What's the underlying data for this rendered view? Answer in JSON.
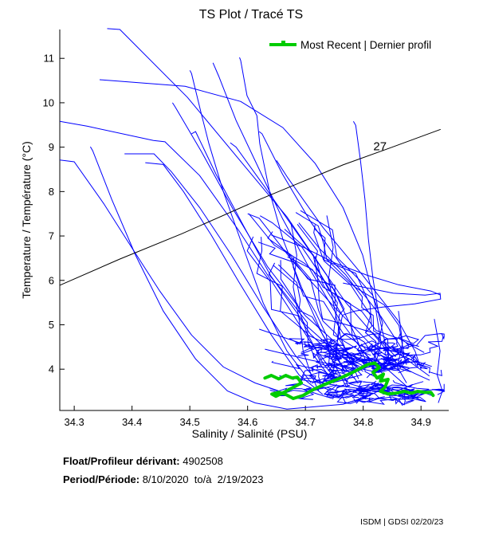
{
  "title": "TS Plot / Tracé TS",
  "legend": {
    "label": "Most Recent | Dernier profil"
  },
  "footer": {
    "float_label": "Float/Profileur dérivant:",
    "float_value": " 4902508",
    "period_label": "Period/Période:",
    "period_value": " 8/10/2020  to/à  2/19/2023",
    "credit": "ISDM | GDSI 02/20/23"
  },
  "chart_data": {
    "type": "line",
    "title": "TS Plot / Tracé TS",
    "xlabel": "Salinity / Salinité (PSU)",
    "ylabel": "Temperature / Température (°C)",
    "xlim": [
      34.275,
      34.948
    ],
    "ylim": [
      3.07,
      11.65
    ],
    "xticks": [
      34.3,
      34.4,
      34.5,
      34.6,
      34.7,
      34.8,
      34.9
    ],
    "yticks": [
      4,
      5,
      6,
      7,
      8,
      9,
      10,
      11
    ],
    "grid": false,
    "legend_position": "top-right",
    "colors": {
      "profiles": "#0000ff",
      "recent": "#00cc00",
      "contour": "#000000"
    },
    "density_contour": {
      "label": "27",
      "label_pos": [
        34.829,
        9.02
      ],
      "points": [
        [
          34.275,
          5.89
        ],
        [
          34.379,
          6.48
        ],
        [
          34.486,
          7.05
        ],
        [
          34.62,
          7.82
        ],
        [
          34.765,
          8.6
        ],
        [
          34.848,
          8.99
        ],
        [
          34.934,
          9.4
        ]
      ]
    },
    "profiles": [
      [
        [
          34.357,
          11.67
        ],
        [
          34.379,
          11.65
        ],
        [
          34.496,
          10.12
        ],
        [
          34.597,
          8.54
        ],
        [
          34.668,
          7.43
        ],
        [
          34.737,
          6.12
        ],
        [
          34.786,
          4.77
        ],
        [
          34.806,
          4.14
        ]
      ],
      [
        [
          34.344,
          10.52
        ],
        [
          34.492,
          10.37
        ],
        [
          34.588,
          10.03
        ],
        [
          34.661,
          9.44
        ],
        [
          34.717,
          8.63
        ],
        [
          34.765,
          7.64
        ],
        [
          34.799,
          6.57
        ],
        [
          34.82,
          5.49
        ],
        [
          34.831,
          4.59
        ],
        [
          34.82,
          4.05
        ]
      ],
      [
        [
          34.275,
          9.58
        ],
        [
          34.323,
          9.47
        ],
        [
          34.437,
          9.15
        ],
        [
          34.457,
          9.12
        ],
        [
          34.517,
          8.36
        ],
        [
          34.586,
          7.1
        ],
        [
          34.648,
          5.85
        ],
        [
          34.71,
          4.59
        ],
        [
          34.751,
          3.87
        ]
      ],
      [
        [
          34.5,
          10.73
        ],
        [
          34.503,
          10.66
        ],
        [
          34.519,
          9.8
        ],
        [
          34.533,
          9.08
        ],
        [
          34.558,
          8.0
        ],
        [
          34.592,
          6.75
        ],
        [
          34.627,
          5.49
        ],
        [
          34.668,
          4.41
        ],
        [
          34.71,
          3.69
        ]
      ],
      [
        [
          34.586,
          11.02
        ],
        [
          34.588,
          10.95
        ],
        [
          34.599,
          10.16
        ],
        [
          34.616,
          9.71
        ],
        [
          34.621,
          9.08
        ],
        [
          34.638,
          8.0
        ],
        [
          34.661,
          6.93
        ],
        [
          34.693,
          5.85
        ],
        [
          34.73,
          4.77
        ],
        [
          34.768,
          3.96
        ]
      ],
      [
        [
          34.783,
          9.58
        ],
        [
          34.787,
          9.49
        ],
        [
          34.795,
          8.72
        ],
        [
          34.803,
          7.82
        ],
        [
          34.809,
          6.93
        ],
        [
          34.817,
          6.03
        ],
        [
          34.827,
          5.22
        ],
        [
          34.838,
          4.59
        ],
        [
          34.848,
          4.05
        ]
      ],
      [
        [
          34.387,
          8.85
        ],
        [
          34.438,
          8.85
        ],
        [
          34.468,
          8.45
        ],
        [
          34.517,
          7.64
        ],
        [
          34.572,
          6.57
        ],
        [
          34.627,
          5.4
        ],
        [
          34.682,
          4.32
        ],
        [
          34.723,
          3.69
        ]
      ],
      [
        [
          34.423,
          8.65
        ],
        [
          34.454,
          8.61
        ],
        [
          34.489,
          8.0
        ],
        [
          34.537,
          7.02
        ],
        [
          34.586,
          5.94
        ],
        [
          34.641,
          4.77
        ],
        [
          34.689,
          3.87
        ],
        [
          34.73,
          3.43
        ]
      ],
      [
        [
          34.328,
          9.01
        ],
        [
          34.332,
          8.92
        ],
        [
          34.365,
          7.82
        ],
        [
          34.406,
          6.57
        ],
        [
          34.454,
          5.31
        ],
        [
          34.51,
          4.23
        ],
        [
          34.565,
          3.51
        ],
        [
          34.613,
          3.24
        ],
        [
          34.668,
          3.1
        ],
        [
          34.765,
          3.21
        ],
        [
          34.813,
          3.41
        ]
      ],
      [
        [
          34.275,
          8.71
        ],
        [
          34.3,
          8.67
        ],
        [
          34.351,
          7.73
        ],
        [
          34.399,
          6.75
        ],
        [
          34.448,
          5.76
        ],
        [
          34.503,
          4.77
        ],
        [
          34.558,
          4.05
        ],
        [
          34.613,
          3.69
        ],
        [
          34.654,
          3.51
        ]
      ],
      [
        [
          34.765,
          5.94
        ],
        [
          34.852,
          5.71
        ],
        [
          34.907,
          5.67
        ],
        [
          34.933,
          5.71
        ],
        [
          34.934,
          5.58
        ],
        [
          34.889,
          5.47
        ],
        [
          34.834,
          5.4
        ],
        [
          34.786,
          5.31
        ],
        [
          34.765,
          5.22
        ]
      ],
      [
        [
          34.641,
          7.02
        ],
        [
          34.696,
          6.75
        ],
        [
          34.751,
          6.39
        ],
        [
          34.806,
          6.12
        ],
        [
          34.861,
          5.9
        ],
        [
          34.917,
          5.76
        ],
        [
          34.934,
          5.67
        ]
      ],
      [
        [
          34.675,
          7.29
        ],
        [
          34.685,
          6.57
        ],
        [
          34.679,
          5.85
        ],
        [
          34.689,
          5.13
        ],
        [
          34.696,
          4.41
        ],
        [
          34.71,
          3.87
        ],
        [
          34.723,
          3.51
        ]
      ],
      [
        [
          34.737,
          7.46
        ],
        [
          34.748,
          6.75
        ],
        [
          34.74,
          6.03
        ],
        [
          34.751,
          5.31
        ],
        [
          34.762,
          4.68
        ],
        [
          34.779,
          4.14
        ],
        [
          34.792,
          3.78
        ]
      ],
      [
        [
          34.861,
          5.31
        ],
        [
          34.868,
          4.59
        ],
        [
          34.859,
          4.05
        ],
        [
          34.875,
          3.69
        ]
      ],
      [
        [
          34.923,
          5.13
        ],
        [
          34.933,
          4.41
        ],
        [
          34.928,
          3.87
        ],
        [
          34.937,
          3.51
        ],
        [
          34.93,
          3.24
        ]
      ],
      [
        [
          34.503,
          9.3
        ],
        [
          34.51,
          9.35
        ],
        [
          34.545,
          8.4
        ],
        [
          34.59,
          7.3
        ],
        [
          34.64,
          6.1
        ],
        [
          34.7,
          5.0
        ],
        [
          34.76,
          4.3
        ],
        [
          34.8,
          3.95
        ]
      ],
      [
        [
          34.47,
          10.0
        ],
        [
          34.475,
          9.9
        ],
        [
          34.52,
          8.9
        ],
        [
          34.575,
          7.6
        ],
        [
          34.635,
          6.3
        ],
        [
          34.7,
          5.2
        ],
        [
          34.765,
          4.45
        ],
        [
          34.805,
          4.1
        ]
      ],
      [
        [
          34.62,
          9.35
        ],
        [
          34.625,
          9.3
        ],
        [
          34.66,
          8.4
        ],
        [
          34.71,
          7.3
        ],
        [
          34.77,
          6.2
        ],
        [
          34.83,
          5.2
        ],
        [
          34.865,
          4.5
        ],
        [
          34.875,
          4.1
        ]
      ],
      [
        [
          34.65,
          8.7
        ],
        [
          34.67,
          8.3
        ],
        [
          34.73,
          7.2
        ],
        [
          34.8,
          6.1
        ],
        [
          34.86,
          5.1
        ],
        [
          34.89,
          4.4
        ],
        [
          34.9,
          4.0
        ]
      ],
      [
        [
          34.57,
          9.1
        ],
        [
          34.58,
          9.0
        ],
        [
          34.63,
          8.1
        ],
        [
          34.7,
          6.8
        ],
        [
          34.77,
          5.5
        ],
        [
          34.83,
          4.6
        ],
        [
          34.86,
          4.1
        ]
      ],
      [
        [
          34.6,
          7.5
        ],
        [
          34.62,
          7.4
        ],
        [
          34.68,
          6.4
        ],
        [
          34.75,
          5.4
        ],
        [
          34.81,
          4.6
        ],
        [
          34.85,
          4.2
        ]
      ],
      [
        [
          34.54,
          10.9
        ],
        [
          34.55,
          10.6
        ],
        [
          34.58,
          9.6
        ],
        [
          34.62,
          8.5
        ],
        [
          34.66,
          7.4
        ],
        [
          34.71,
          6.2
        ],
        [
          34.76,
          5.1
        ],
        [
          34.8,
          4.4
        ],
        [
          34.825,
          4.05
        ]
      ],
      [
        [
          34.62,
          4.9
        ],
        [
          34.7,
          4.55
        ],
        [
          34.78,
          4.3
        ],
        [
          34.84,
          4.5
        ],
        [
          34.88,
          4.3
        ],
        [
          34.9,
          4.1
        ]
      ],
      [
        [
          34.63,
          4.45
        ],
        [
          34.71,
          4.2
        ],
        [
          34.79,
          4.0
        ],
        [
          34.85,
          4.15
        ],
        [
          34.89,
          3.9
        ],
        [
          34.915,
          3.75
        ]
      ],
      [
        [
          34.655,
          3.85
        ],
        [
          34.72,
          3.7
        ],
        [
          34.8,
          3.55
        ],
        [
          34.86,
          3.6
        ],
        [
          34.91,
          3.45
        ],
        [
          34.92,
          3.4
        ]
      ]
    ],
    "cluster": {
      "seed": 20230220,
      "core": {
        "count": 55,
        "s_range": [
          34.72,
          34.89
        ],
        "t_range": [
          3.3,
          4.55
        ],
        "s_jitter": 0.028,
        "t_jitter": 0.13,
        "segments": [
          10,
          16
        ],
        "s_bounds": [
          34.635,
          34.94
        ],
        "t_bounds": [
          3.12,
          4.8
        ]
      },
      "fan": {
        "count": 20,
        "s_start": [
          34.6,
          34.73
        ],
        "t_start": [
          6.3,
          7.6
        ],
        "segments": [
          6,
          9
        ],
        "s_step": 0.022,
        "s_jitter": 0.035,
        "t_step": -0.42,
        "t_jitter": 0.3,
        "t_min": 4.1
      }
    },
    "recent_profile": [
      [
        34.63,
        3.8
      ],
      [
        34.641,
        3.86
      ],
      [
        34.654,
        3.78
      ],
      [
        34.666,
        3.86
      ],
      [
        34.677,
        3.8
      ],
      [
        34.686,
        3.82
      ],
      [
        34.693,
        3.69
      ],
      [
        34.679,
        3.59
      ],
      [
        34.663,
        3.48
      ],
      [
        34.649,
        3.39
      ],
      [
        34.642,
        3.44
      ],
      [
        34.654,
        3.48
      ],
      [
        34.666,
        3.43
      ],
      [
        34.679,
        3.34
      ],
      [
        34.696,
        3.41
      ],
      [
        34.715,
        3.55
      ],
      [
        34.734,
        3.66
      ],
      [
        34.757,
        3.78
      ],
      [
        34.779,
        3.91
      ],
      [
        34.795,
        4.02
      ],
      [
        34.809,
        4.11
      ],
      [
        34.82,
        4.14
      ],
      [
        34.828,
        4.04
      ],
      [
        34.817,
        3.93
      ],
      [
        34.824,
        3.8
      ],
      [
        34.835,
        3.89
      ],
      [
        34.83,
        3.73
      ],
      [
        34.843,
        3.77
      ],
      [
        34.838,
        3.6
      ],
      [
        34.83,
        3.5
      ],
      [
        34.843,
        3.44
      ],
      [
        34.857,
        3.46
      ],
      [
        34.871,
        3.5
      ],
      [
        34.883,
        3.46
      ],
      [
        34.894,
        3.5
      ],
      [
        34.906,
        3.48
      ],
      [
        34.917,
        3.48
      ],
      [
        34.921,
        3.41
      ]
    ]
  }
}
